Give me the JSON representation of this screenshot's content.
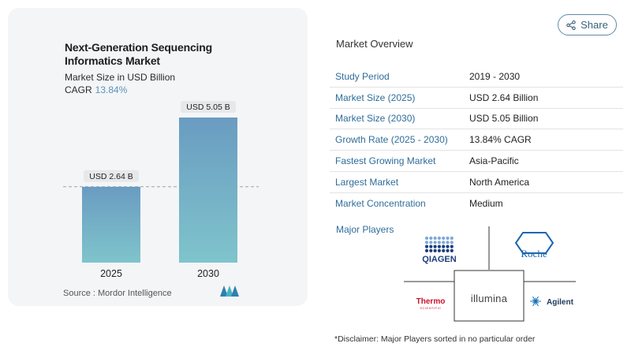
{
  "chart_data": {
    "type": "bar",
    "title": "Next-Generation Sequencing Informatics Market",
    "subtitle": "Market Size in USD Billion",
    "cagr_label": "CAGR",
    "cagr_value": "13.84%",
    "categories": [
      "2025",
      "2030"
    ],
    "values": [
      2.64,
      5.05
    ],
    "data_labels": [
      "USD 2.64 B",
      "USD 5.05 B"
    ],
    "xlabel": "",
    "ylabel": "",
    "ylim": [
      0,
      5.05
    ],
    "grid": false,
    "reference_line": "dashed line at 2025 value",
    "colors": {
      "bar_top": "#6a9cc1",
      "bar_bottom": "#7fc4cc",
      "label_bg": "#e6e8ea"
    }
  },
  "source": "Source :  Mordor Intelligence",
  "share": {
    "label": "Share",
    "icon": "share-icon"
  },
  "overview": {
    "title": "Market Overview",
    "rows": [
      {
        "label": "Study Period",
        "value": "2019 - 2030"
      },
      {
        "label": "Market Size (2025)",
        "value": "USD 2.64 Billion"
      },
      {
        "label": "Market Size (2030)",
        "value": "USD 5.05 Billion"
      },
      {
        "label": "Growth Rate (2025 - 2030)",
        "value": "13.84% CAGR"
      },
      {
        "label": "Fastest Growing Market",
        "value": "Asia-Pacific"
      },
      {
        "label": "Largest Market",
        "value": "North America"
      },
      {
        "label": "Market Concentration",
        "value": "Medium"
      }
    ]
  },
  "major_players": {
    "title": "Major Players",
    "logos": [
      "QIAGEN",
      "Roche",
      "Thermo",
      "SCIENTIFIC",
      "illumina",
      "Agilent"
    ]
  },
  "disclaimer": "*Disclaimer: Major Players sorted in no particular order"
}
